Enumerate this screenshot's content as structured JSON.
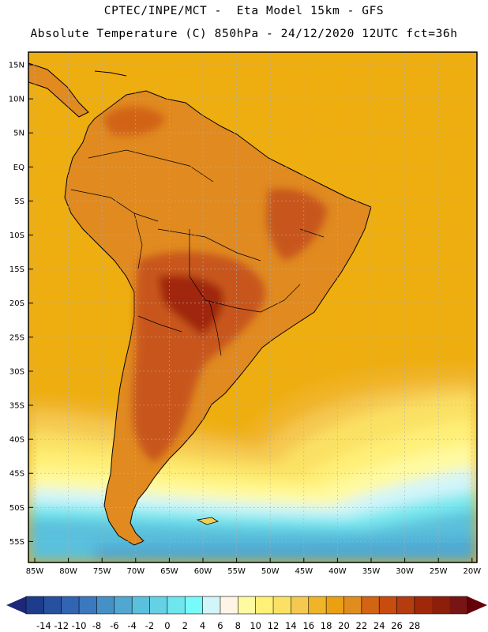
{
  "header": {
    "line1": "CPTEC/INPE/MCT -  Eta Model 15km - GFS",
    "line2": "Absolute Temperature (C) 850hPa - 24/12/2020 12UTC fct=36h"
  },
  "map": {
    "lat_labels": [
      "15N",
      "10N",
      "5N",
      "EQ",
      "5S",
      "10S",
      "15S",
      "20S",
      "25S",
      "30S",
      "35S",
      "40S",
      "45S",
      "50S",
      "55S"
    ],
    "lon_labels": [
      "85W",
      "80W",
      "75W",
      "70W",
      "65W",
      "60W",
      "55W",
      "50W",
      "45W",
      "40W",
      "35W",
      "30W",
      "25W",
      "20W"
    ],
    "ocean_color": "#eeae10",
    "land_color": "#e08a20",
    "hot_color": "#c8561e",
    "grid_line_color": "#b0b0b0"
  },
  "colorbar": {
    "labels": [
      "-14",
      "-12",
      "-10",
      "-8",
      "-6",
      "-4",
      "-2",
      "0",
      "2",
      "4",
      "6",
      "8",
      "10",
      "12",
      "14",
      "16",
      "18",
      "20",
      "22",
      "24",
      "26",
      "28"
    ],
    "colors": [
      "#1e3c8c",
      "#2850a0",
      "#3264b4",
      "#3c78c0",
      "#4690c8",
      "#50a8d2",
      "#5ac0dc",
      "#64d2e4",
      "#6ee6ee",
      "#78fafa",
      "#d2f5fa",
      "#fff5e6",
      "#fffaa0",
      "#fff078",
      "#fae164",
      "#f5c850",
      "#f0b428",
      "#eba014",
      "#e18c1e",
      "#d26414",
      "#c84b0f",
      "#b43c0f",
      "#a0280a",
      "#8c1e0a",
      "#781414"
    ],
    "left_arrow_color": "#1e2878",
    "right_arrow_color": "#64000a"
  }
}
